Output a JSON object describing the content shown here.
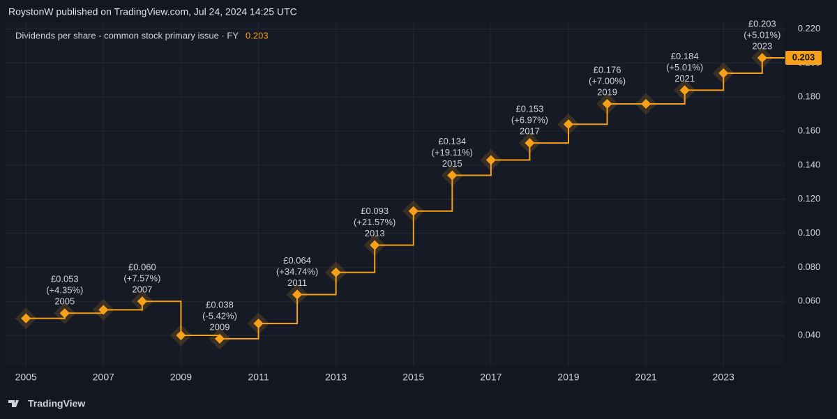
{
  "header": {
    "text": "RoystonW published on TradingView.com, Jul 24, 2024 14:25 UTC"
  },
  "footer": {
    "brand": "TradingView"
  },
  "chart_data": {
    "type": "step",
    "x": [
      2005,
      2006,
      2007,
      2008,
      2009,
      2010,
      2011,
      2012,
      2013,
      2014,
      2015,
      2016,
      2017,
      2018,
      2019,
      2020,
      2021,
      2022,
      2023,
      2024
    ],
    "series": [
      {
        "name": "Dividends per share - common stock primary issue · FY",
        "color": "#f7a11a",
        "values": [
          0.05,
          0.053,
          0.055,
          0.06,
          0.04,
          0.038,
          0.047,
          0.064,
          0.077,
          0.093,
          0.113,
          0.134,
          0.143,
          0.153,
          0.164,
          0.176,
          0.176,
          0.184,
          0.194,
          0.203
        ]
      }
    ],
    "annotations": [
      {
        "value": 0.053,
        "label": "£0.053",
        "change": "(+4.35%)",
        "year": "2005"
      },
      {
        "value": 0.06,
        "label": "£0.060",
        "change": "(+7.57%)",
        "year": "2007"
      },
      {
        "value": 0.038,
        "label": "£0.038",
        "change": "(-5.42%)",
        "year": "2009"
      },
      {
        "value": 0.064,
        "label": "£0.064",
        "change": "(+34.74%)",
        "year": "2011"
      },
      {
        "value": 0.093,
        "label": "£0.093",
        "change": "(+21.57%)",
        "year": "2013"
      },
      {
        "value": 0.134,
        "label": "£0.134",
        "change": "(+19.11%)",
        "year": "2015"
      },
      {
        "value": 0.153,
        "label": "£0.153",
        "change": "(+6.97%)",
        "year": "2017"
      },
      {
        "value": 0.176,
        "label": "£0.176",
        "change": "(+7.00%)",
        "year": "2019"
      },
      {
        "value": 0.184,
        "label": "£0.184",
        "change": "(+5.01%)",
        "year": "2021"
      },
      {
        "value": 0.203,
        "label": "£0.203",
        "change": "(+5.01%)",
        "year": "2023"
      }
    ],
    "xlim": [
      2004.33,
      2024.58
    ],
    "ylim": [
      0.022,
      0.237
    ],
    "xticks": [
      2005,
      2007,
      2009,
      2011,
      2013,
      2015,
      2017,
      2019,
      2021,
      2023
    ],
    "yticks": [
      {
        "value": 0.04,
        "label": "0.040"
      },
      {
        "value": 0.06,
        "label": "0.060"
      },
      {
        "value": 0.08,
        "label": "0.080"
      },
      {
        "value": 0.1,
        "label": "0.100"
      },
      {
        "value": 0.12,
        "label": "0.120"
      },
      {
        "value": 0.14,
        "label": "0.140"
      },
      {
        "value": 0.16,
        "label": "0.160"
      },
      {
        "value": 0.18,
        "label": "0.180"
      },
      {
        "value": 0.2,
        "label": "0.200"
      },
      {
        "value": 0.22,
        "label": "0.220"
      }
    ],
    "grid": true
  }
}
